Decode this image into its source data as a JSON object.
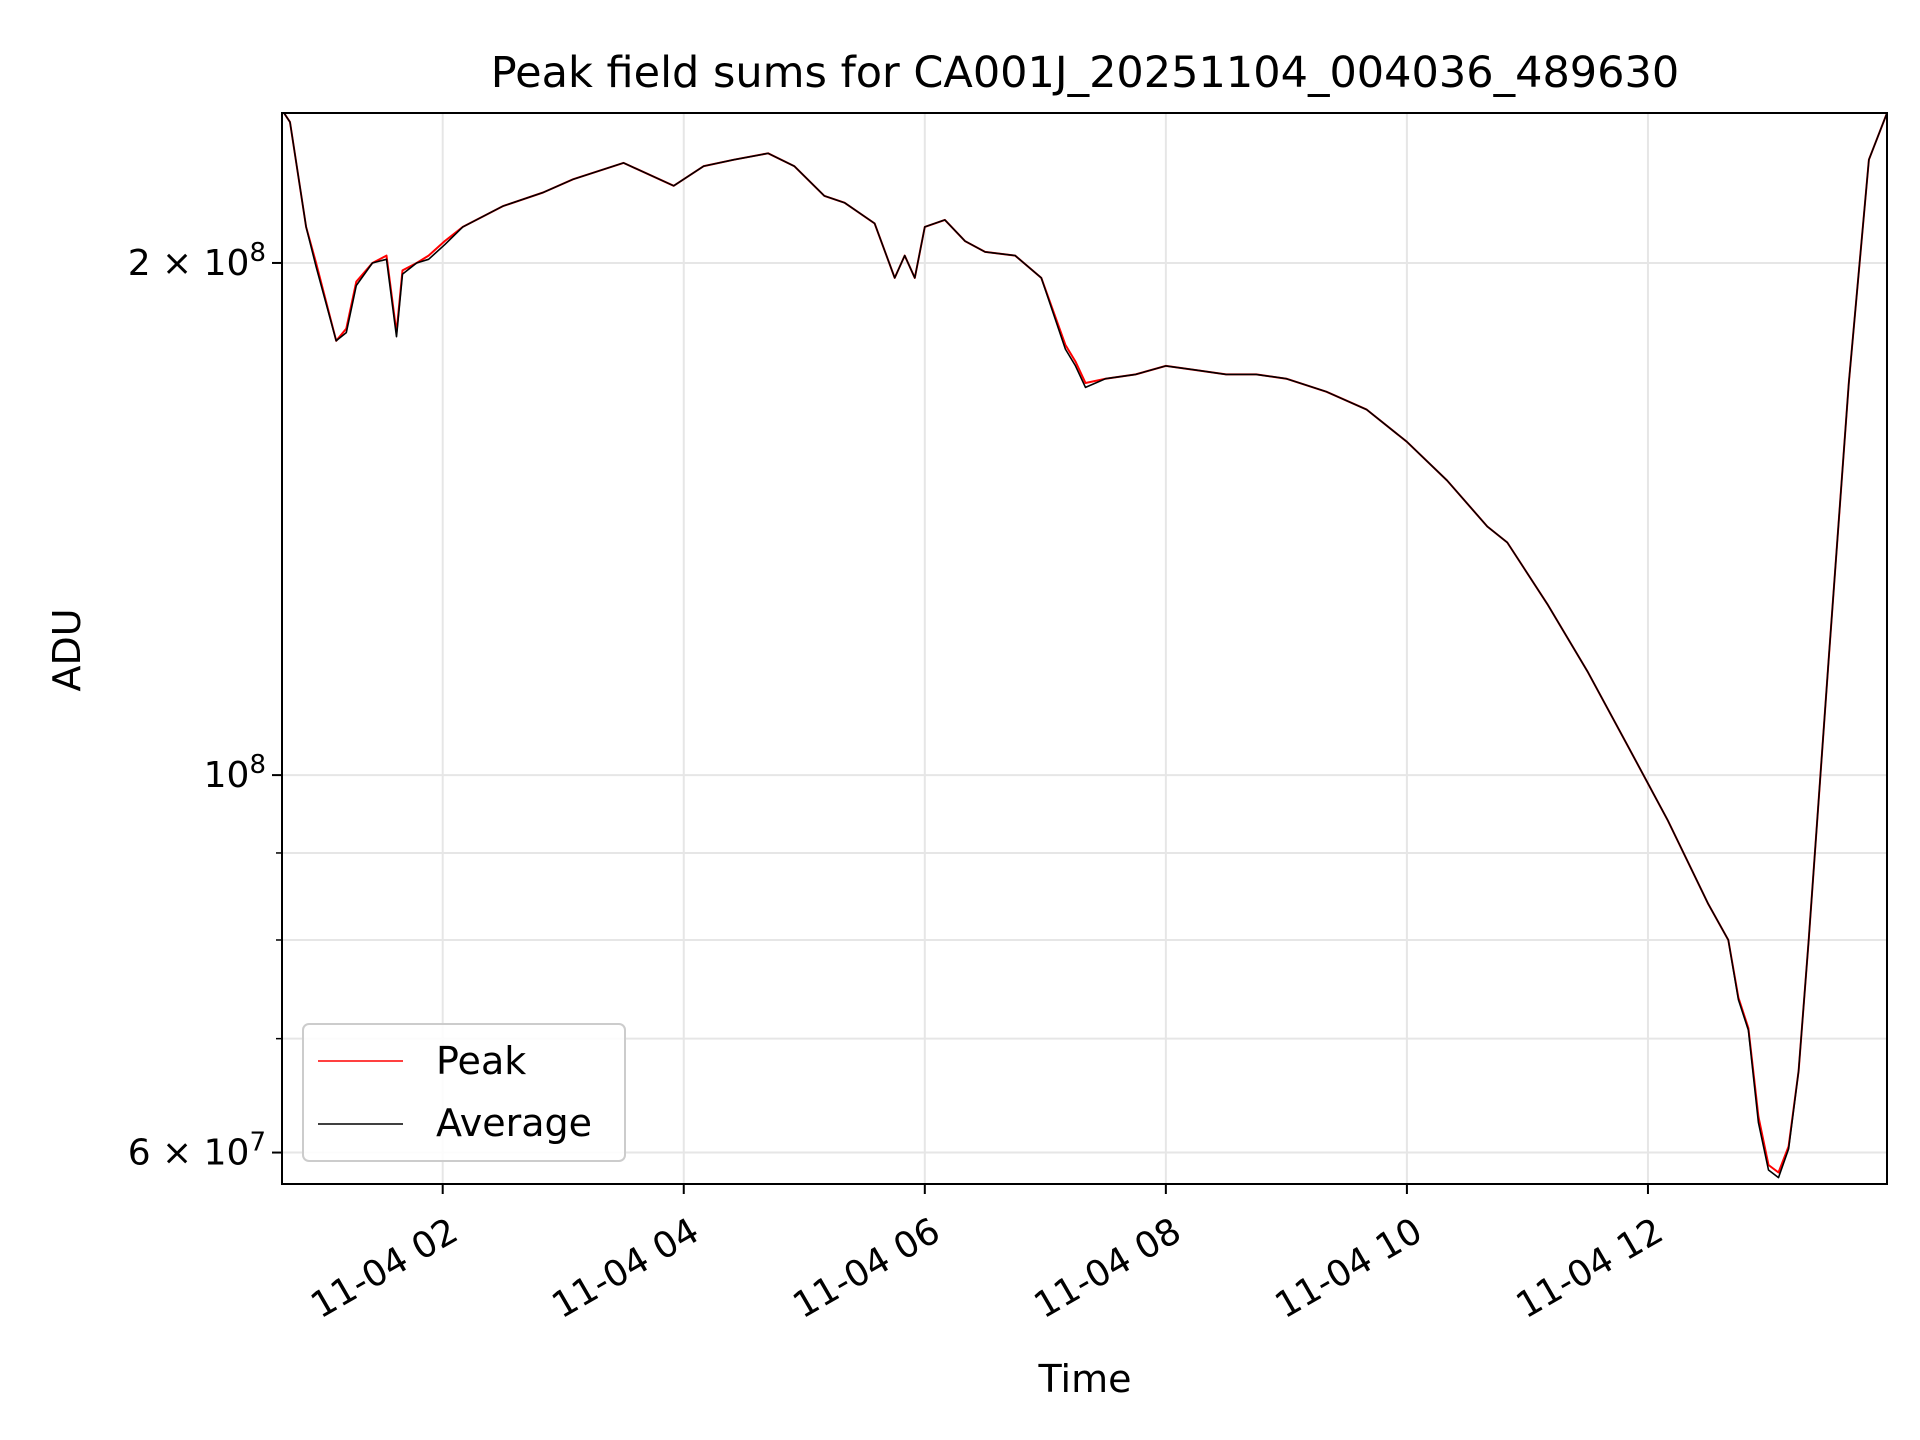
{
  "chart_data": {
    "type": "line",
    "title": "Peak field sums for CA001J_20251104_004036_489630",
    "xlabel": "Time",
    "ylabel": "ADU",
    "y_scale": "log",
    "xlim": [
      "2025-11-04 00:40",
      "2025-11-04 13:59"
    ],
    "ylim": [
      57500000,
      245000000
    ],
    "grid": true,
    "legend_position": "lower left",
    "x_ticks": [
      {
        "t": "2025-11-04 02:00",
        "label": "11-04 02"
      },
      {
        "t": "2025-11-04 04:00",
        "label": "11-04 04"
      },
      {
        "t": "2025-11-04 06:00",
        "label": "11-04 06"
      },
      {
        "t": "2025-11-04 08:00",
        "label": "11-04 08"
      },
      {
        "t": "2025-11-04 10:00",
        "label": "11-04 10"
      },
      {
        "t": "2025-11-04 12:00",
        "label": "11-04 12"
      }
    ],
    "y_ticks": [
      {
        "value": 200000000,
        "label": "2 × 10",
        "exp": "8"
      },
      {
        "value": 100000000,
        "label": "10",
        "exp": "8"
      },
      {
        "value": 60000000,
        "label": "6 × 10",
        "exp": "7"
      }
    ],
    "y_minor_ticks": [
      70000000,
      80000000,
      90000000
    ],
    "x": [
      "2025-11-04 00:41",
      "2025-11-04 00:44",
      "2025-11-04 00:52",
      "2025-11-04 00:57",
      "2025-11-04 01:07",
      "2025-11-04 01:12",
      "2025-11-04 01:17",
      "2025-11-04 01:25",
      "2025-11-04 01:32",
      "2025-11-04 01:37",
      "2025-11-04 01:40",
      "2025-11-04 01:47",
      "2025-11-04 01:53",
      "2025-11-04 02:01",
      "2025-11-04 02:10",
      "2025-11-04 02:30",
      "2025-11-04 02:50",
      "2025-11-04 03:05",
      "2025-11-04 03:30",
      "2025-11-04 03:55",
      "2025-11-04 04:10",
      "2025-11-04 04:25",
      "2025-11-04 04:42",
      "2025-11-04 04:55",
      "2025-11-04 05:10",
      "2025-11-04 05:20",
      "2025-11-04 05:35",
      "2025-11-04 05:45",
      "2025-11-04 05:50",
      "2025-11-04 05:55",
      "2025-11-04 06:00",
      "2025-11-04 06:10",
      "2025-11-04 06:20",
      "2025-11-04 06:30",
      "2025-11-04 06:45",
      "2025-11-04 06:58",
      "2025-11-04 07:10",
      "2025-11-04 07:15",
      "2025-11-04 07:20",
      "2025-11-04 07:30",
      "2025-11-04 07:45",
      "2025-11-04 08:00",
      "2025-11-04 08:15",
      "2025-11-04 08:30",
      "2025-11-04 08:45",
      "2025-11-04 09:00",
      "2025-11-04 09:20",
      "2025-11-04 09:40",
      "2025-11-04 10:00",
      "2025-11-04 10:20",
      "2025-11-04 10:40",
      "2025-11-04 10:50",
      "2025-11-04 11:10",
      "2025-11-04 11:30",
      "2025-11-04 11:50",
      "2025-11-04 12:10",
      "2025-11-04 12:30",
      "2025-11-04 12:40",
      "2025-11-04 12:45",
      "2025-11-04 12:50",
      "2025-11-04 12:55",
      "2025-11-04 13:00",
      "2025-11-04 13:05",
      "2025-11-04 13:10",
      "2025-11-04 13:15",
      "2025-11-04 13:20",
      "2025-11-04 13:30",
      "2025-11-04 13:40",
      "2025-11-04 13:50",
      "2025-11-04 13:59"
    ],
    "series": [
      {
        "name": "Peak",
        "color": "#ff0000",
        "values": [
          245000000,
          242000000,
          210000000,
          200000000,
          180000000,
          183000000,
          195000000,
          200000000,
          202000000,
          182000000,
          198000000,
          200000000,
          202000000,
          206000000,
          210000000,
          216000000,
          220000000,
          224000000,
          229000000,
          222000000,
          228000000,
          230000000,
          232000000,
          228000000,
          219000000,
          217000000,
          211000000,
          196000000,
          202000000,
          196000000,
          210000000,
          212000000,
          206000000,
          203000000,
          202000000,
          196000000,
          179000000,
          175000000,
          170000000,
          171000000,
          172000000,
          174000000,
          173000000,
          172000000,
          172000000,
          171000000,
          168000000,
          164000000,
          157000000,
          149000000,
          140000000,
          137000000,
          126000000,
          115000000,
          104000000,
          94000000,
          84000000,
          80000000,
          74000000,
          71000000,
          63000000,
          59000000,
          58400000,
          60500000,
          67000000,
          80000000,
          117000000,
          170000000,
          230000000,
          245000000
        ]
      },
      {
        "name": "Average",
        "color": "#000000",
        "values": [
          245000000,
          242000000,
          210000000,
          199000000,
          180000000,
          182000000,
          194000000,
          200000000,
          201000000,
          181000000,
          197000000,
          200000000,
          201000000,
          205000000,
          210000000,
          216000000,
          220000000,
          224000000,
          229000000,
          222000000,
          228000000,
          230000000,
          232000000,
          228000000,
          219000000,
          217000000,
          211000000,
          196000000,
          202000000,
          196000000,
          210000000,
          212000000,
          206000000,
          203000000,
          202000000,
          196000000,
          178000000,
          174000000,
          169000000,
          171000000,
          172000000,
          174000000,
          173000000,
          172000000,
          172000000,
          171000000,
          168000000,
          164000000,
          157000000,
          149000000,
          140000000,
          137000000,
          126000000,
          115000000,
          104000000,
          94000000,
          84000000,
          80000000,
          73800000,
          70800000,
          62500000,
          58600000,
          58000000,
          60300000,
          67000000,
          80000000,
          117000000,
          170000000,
          230000000,
          245000000
        ]
      }
    ]
  }
}
